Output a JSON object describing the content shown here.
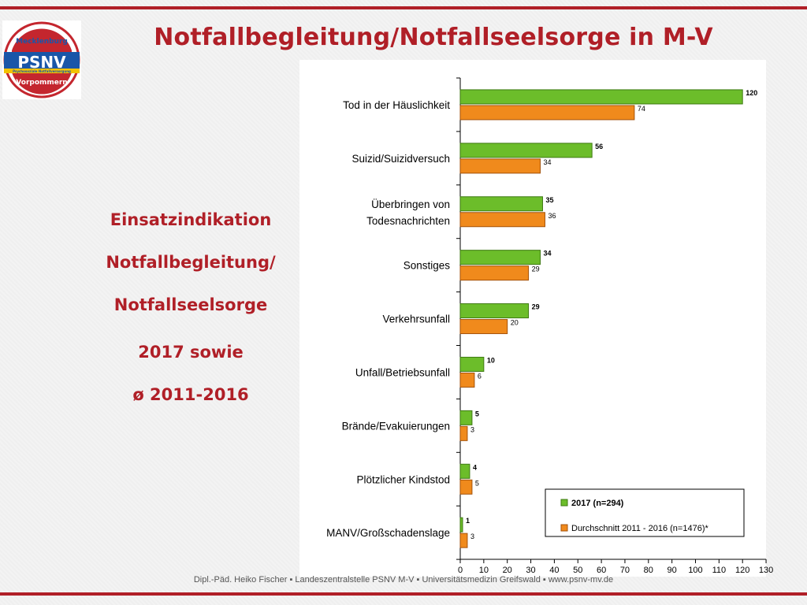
{
  "title": "Notfallbegleitung/Notfallseelsorge in M-V",
  "logo": {
    "top_text": "Mecklenburg",
    "main_text": "PSNV",
    "sub_text": "Psychosoziale Notfallversorgung",
    "bottom_text": "Vorpommern"
  },
  "side_text": [
    "Einsatzindikation",
    "Notfallbegleitung/",
    "Notfallseelsorge",
    "2017 sowie",
    "ø 2011-2016"
  ],
  "footer": "Dipl.-Päd. Heiko Fischer  ▪ Landeszentralstelle PSNV M-V ▪ Universitätsmedizin Greifswald ▪ www.psnv-mv.de",
  "colors": {
    "accent": "#b01f27",
    "series_2017": "#6cbd2a",
    "series_avg": "#f08a1c"
  },
  "chart_data": {
    "type": "bar",
    "orientation": "horizontal",
    "categories": [
      "Tod in der Häuslichkeit",
      "Suizid/Suizidversuch",
      "Überbringen von Todesnachrichten",
      "Sonstiges",
      "Verkehrsunfall",
      "Unfall/Betriebsunfall",
      "Brände/Evakuierungen",
      "Plötzlicher Kindstod",
      "MANV/Großschadenslage"
    ],
    "series": [
      {
        "name": "2017 (n=294)",
        "values": [
          120,
          56,
          35,
          34,
          29,
          10,
          5,
          4,
          1
        ]
      },
      {
        "name": "Durchschnitt 2011 - 2016 (n=1476)*",
        "values": [
          74,
          34,
          36,
          29,
          20,
          6,
          3,
          5,
          3
        ]
      }
    ],
    "xlim": [
      0,
      130
    ],
    "xticks": [
      0,
      10,
      20,
      30,
      40,
      50,
      60,
      70,
      80,
      90,
      100,
      110,
      120,
      130
    ],
    "grid": false,
    "legend_position": "bottom-right"
  }
}
